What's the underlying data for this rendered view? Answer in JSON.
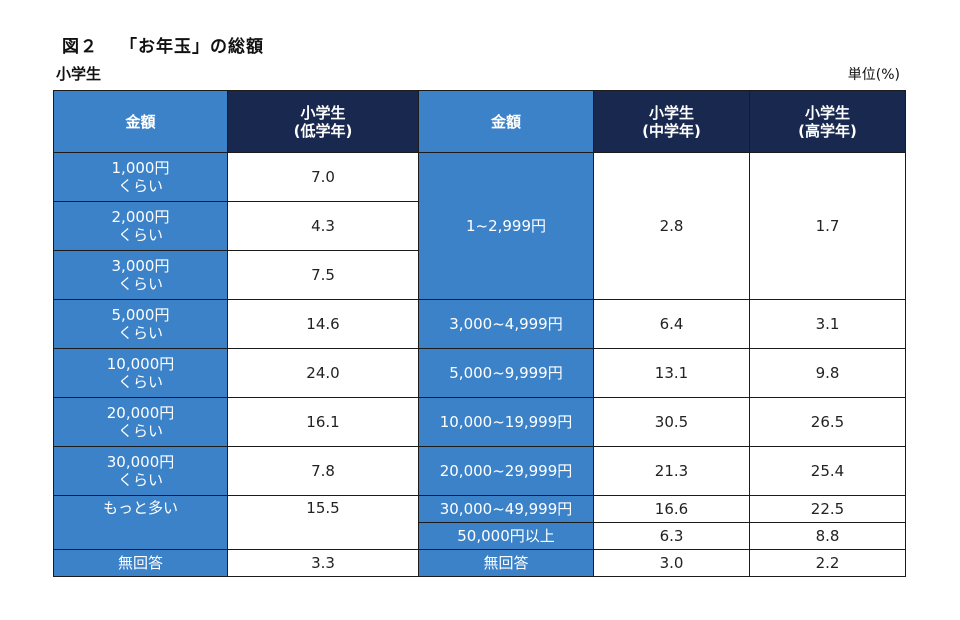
{
  "title": {
    "figure_no": "図２",
    "text": "「お年玉」の総額"
  },
  "subtitle": "小学生",
  "unit": "単位(%)",
  "colors": {
    "label_blue": "#3b82c9",
    "header_navy": "#18284e"
  },
  "chart_data": {
    "type": "table",
    "tables": [
      {
        "columns": [
          "金額",
          "小学生\n(低学年)"
        ],
        "rows": [
          [
            "1,000円\nくらい",
            "7.0"
          ],
          [
            "2,000円\nくらい",
            "4.3"
          ],
          [
            "3,000円\nくらい",
            "7.5"
          ],
          [
            "5,000円\nくらい",
            "14.6"
          ],
          [
            "10,000円\nくらい",
            "24.0"
          ],
          [
            "20,000円\nくらい",
            "16.1"
          ],
          [
            "30,000円\nくらい",
            "7.8"
          ],
          [
            "もっと多い",
            "15.5"
          ],
          [
            "無回答",
            "3.3"
          ]
        ]
      },
      {
        "columns": [
          "金額",
          "小学生\n(中学年)",
          "小学生\n(高学年)"
        ],
        "rows": [
          [
            "1~2,999円",
            "2.8",
            "1.7"
          ],
          [
            "3,000~4,999円",
            "6.4",
            "3.1"
          ],
          [
            "5,000~9,999円",
            "13.1",
            "9.8"
          ],
          [
            "10,000~19,999円",
            "30.5",
            "26.5"
          ],
          [
            "20,000~29,999円",
            "21.3",
            "25.4"
          ],
          [
            "30,000~49,999円",
            "16.6",
            "22.5"
          ],
          [
            "50,000円以上",
            "6.3",
            "8.8"
          ],
          [
            "無回答",
            "3.0",
            "2.2"
          ]
        ]
      }
    ]
  }
}
